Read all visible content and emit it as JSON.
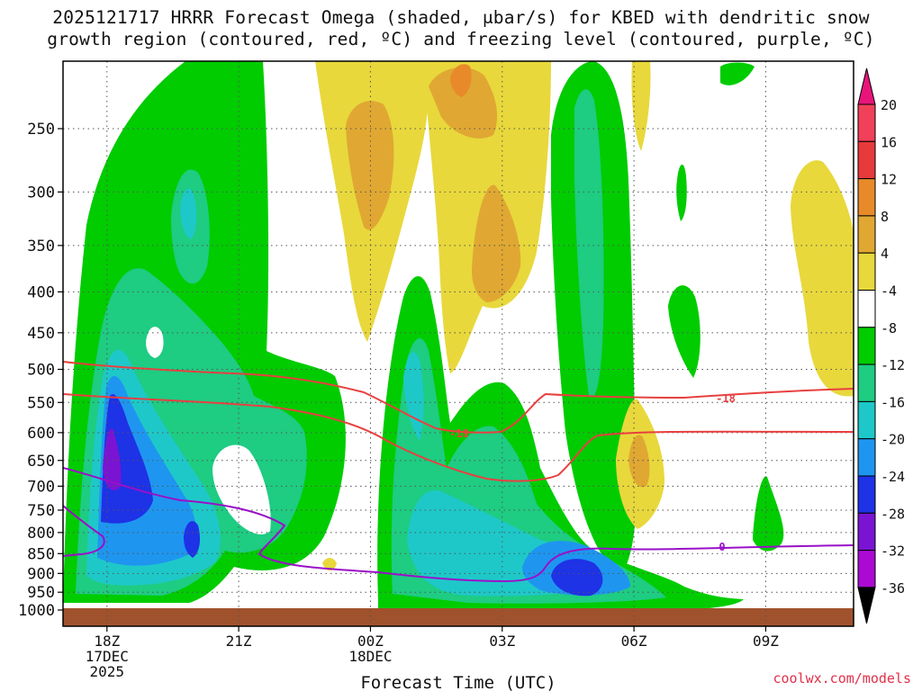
{
  "title_line1": "2025121717 HRRR Forecast Omega (shaded, μbar/s) for KBED with dendritic snow",
  "title_line2": "growth region (contoured, red, ºC) and freezing level (contoured, purple, ºC)",
  "credit": "coolwx.com/models",
  "chart_data": {
    "type": "contour",
    "xlabel": "Forecast Time (UTC)",
    "ylabel": "",
    "x_ticks": [
      {
        "label": "18Z",
        "sub": [
          "17DEC",
          "2025"
        ],
        "hour": 1
      },
      {
        "label": "21Z",
        "sub": [],
        "hour": 4
      },
      {
        "label": "00Z",
        "sub": [
          "18DEC"
        ],
        "hour": 7
      },
      {
        "label": "03Z",
        "sub": [],
        "hour": 10
      },
      {
        "label": "06Z",
        "sub": [],
        "hour": 13
      },
      {
        "label": "09Z",
        "sub": [],
        "hour": 16
      }
    ],
    "xlim_hours": [
      0,
      18
    ],
    "y_ticks": [
      250,
      300,
      350,
      400,
      450,
      500,
      550,
      600,
      650,
      700,
      750,
      800,
      850,
      900,
      950,
      1000
    ],
    "yunit": "mb",
    "colorbar": {
      "levels": [
        20,
        16,
        12,
        8,
        4,
        -4,
        -8,
        -12,
        -16,
        -20,
        -24,
        -28,
        -32,
        -36
      ],
      "colors": [
        "#f0405a",
        "#e83a3a",
        "#e88a2a",
        "#e0a832",
        "#e8d83c",
        "#ffffff",
        "#00cc00",
        "#1ecc82",
        "#1ec8c8",
        "#1e96f0",
        "#1e32e6",
        "#7a14d2",
        "#aa0ad2",
        "#a0a0a0"
      ],
      "top_color": "#e8147a",
      "bottom_color": "#000000"
    },
    "contours": [
      {
        "label": "-18",
        "color": "#e84040",
        "kind": "dendritic"
      },
      {
        "label": "-18",
        "color": "#e84040",
        "kind": "dendritic"
      },
      {
        "label": "0",
        "color": "#9a10c8",
        "kind": "freezing"
      }
    ]
  }
}
